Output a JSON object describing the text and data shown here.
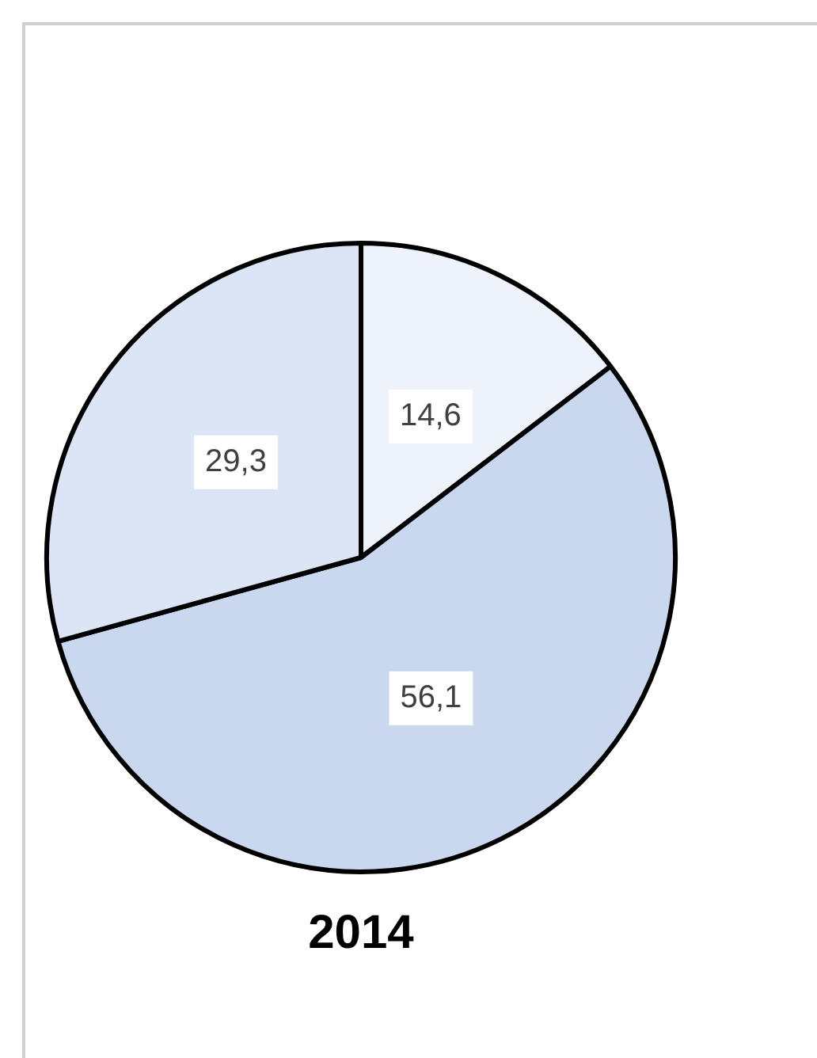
{
  "chart_data": {
    "type": "pie",
    "title": "2014",
    "categories": [
      null,
      null,
      null
    ],
    "values": [
      14.6,
      56.1,
      29.3
    ],
    "colors": [
      "#eef2fa",
      "#c9d7ef",
      "#dce5f5"
    ],
    "value_labels": [
      "14,6",
      "56,1",
      "29,3"
    ],
    "legend": false
  }
}
